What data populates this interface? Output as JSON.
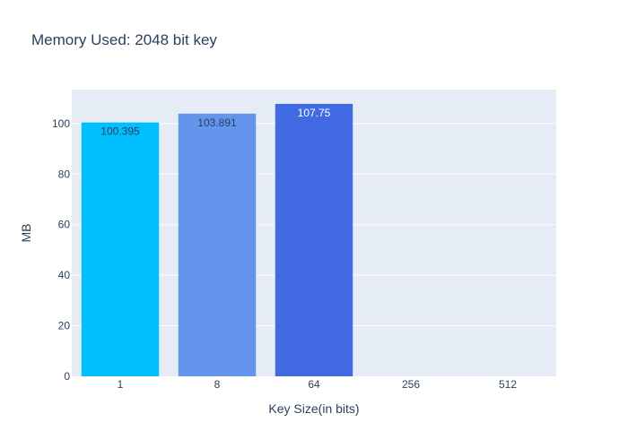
{
  "chart_data": {
    "type": "bar",
    "title": "Memory Used: 2048 bit key",
    "xlabel": "Key Size(in bits)",
    "ylabel": "MB",
    "categories": [
      "1",
      "8",
      "64",
      "256",
      "512"
    ],
    "values": [
      100.395,
      103.891,
      107.75,
      0,
      0
    ],
    "data_labels": [
      "100.395",
      "103.891",
      "107.75",
      "",
      ""
    ],
    "ylim": [
      0,
      113.4
    ],
    "yticks": [
      0,
      20,
      40,
      60,
      80,
      100
    ],
    "grid": true,
    "legend": "none",
    "colors": {
      "bars": [
        "#00bfff",
        "#6495ed",
        "#4169e1",
        "#4169e1",
        "#4169e1"
      ],
      "plot_background": "#e5ecf6",
      "gridline": "#ffffff",
      "text": "#2a3f5f",
      "label_dark": "#2a3f5f",
      "label_light": "#ffffff"
    }
  }
}
